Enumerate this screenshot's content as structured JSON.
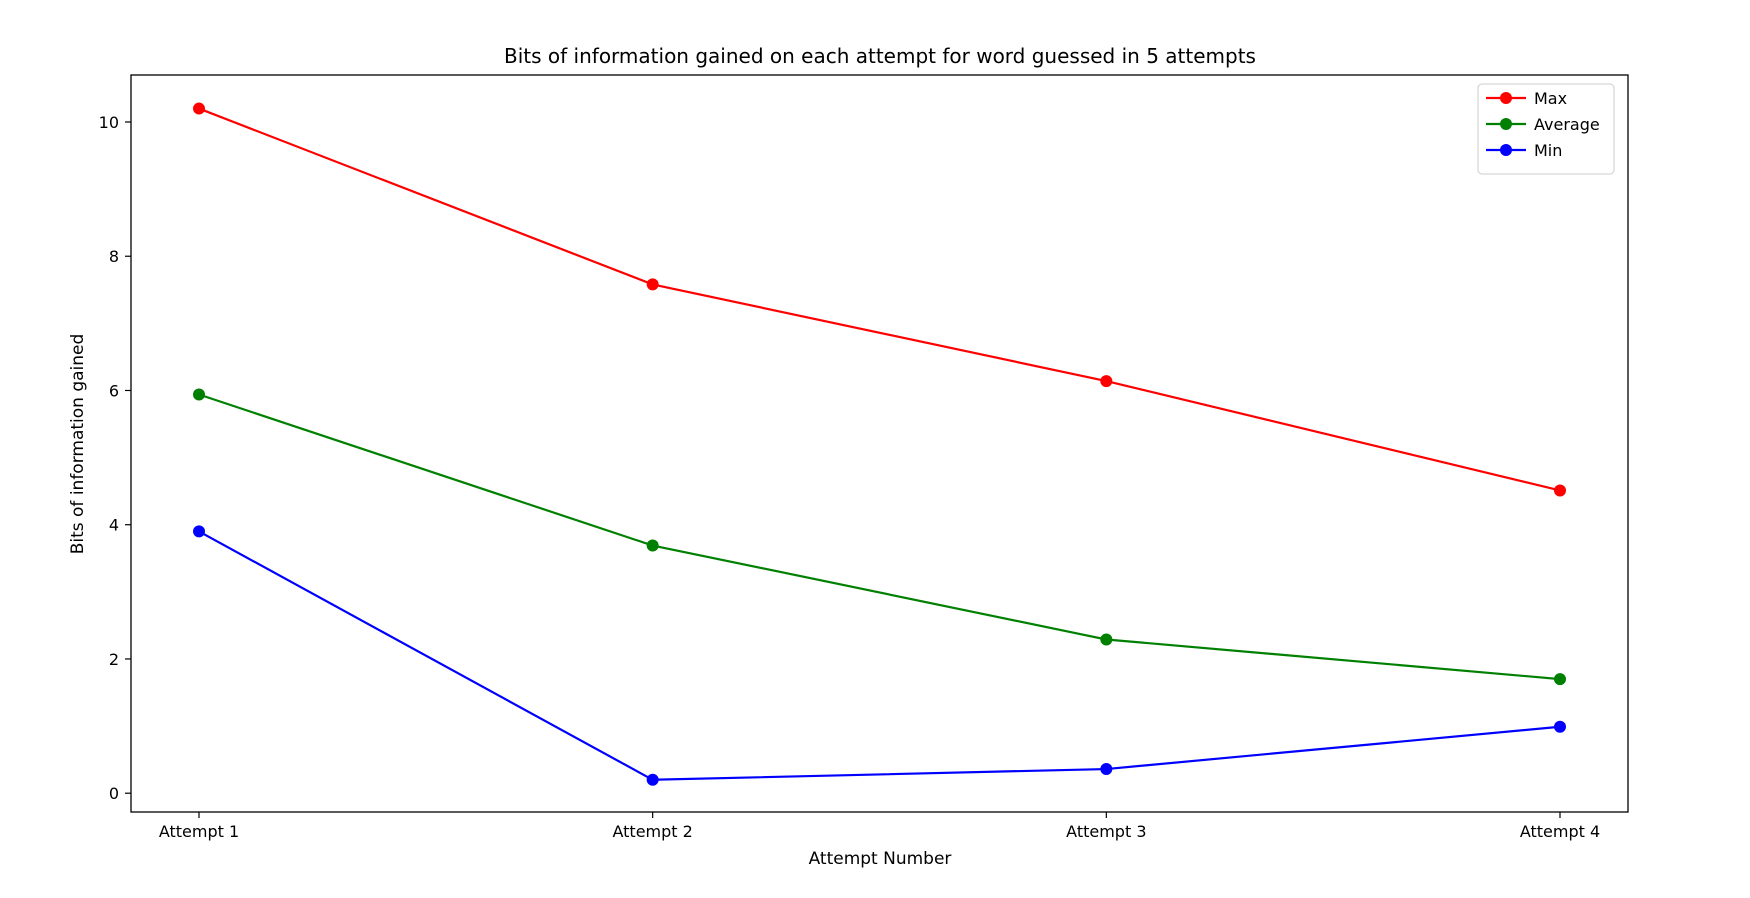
{
  "chart_data": {
    "type": "line",
    "title": "Bits of information gained on each attempt for word guessed in 5 attempts",
    "xlabel": "Attempt Number",
    "ylabel": "Bits of information gained",
    "categories": [
      "Attempt 1",
      "Attempt 2",
      "Attempt 3",
      "Attempt 4"
    ],
    "ylim": [
      -0.28,
      10.7
    ],
    "yticks": [
      0,
      2,
      4,
      6,
      8,
      10
    ],
    "grid": false,
    "legend_position": "top-right",
    "series": [
      {
        "name": "Max",
        "color": "#ff0000",
        "values": [
          10.2,
          7.58,
          6.14,
          4.51
        ]
      },
      {
        "name": "Average",
        "color": "#008000",
        "values": [
          5.94,
          3.69,
          2.29,
          1.7
        ]
      },
      {
        "name": "Min",
        "color": "#0000ff",
        "values": [
          3.9,
          0.2,
          0.36,
          0.99
        ]
      }
    ]
  }
}
